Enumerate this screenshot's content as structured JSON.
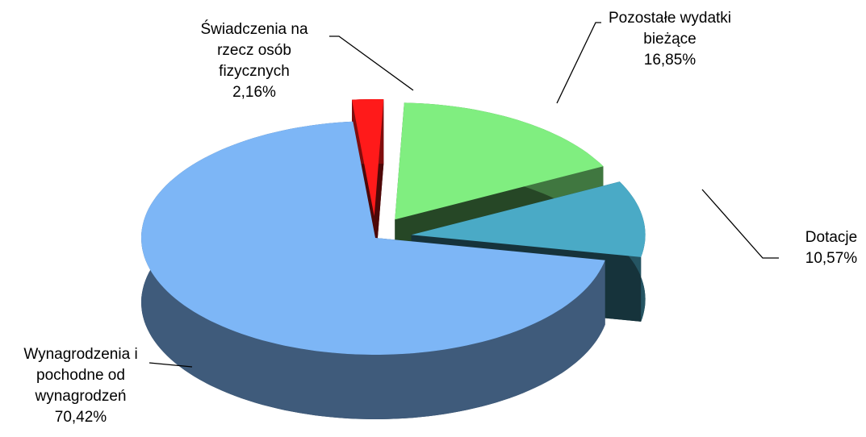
{
  "chart_data": {
    "type": "pie",
    "categories": [
      "Wynagrodzenia i pochodne od wynagrodzeń",
      "Świadczenia na rzecz osób fizycznych",
      "Pozostałe wydatki bieżące",
      "Dotacje"
    ],
    "values": [
      70.42,
      2.16,
      16.85,
      10.57
    ],
    "value_labels": [
      "70,42%",
      "2,16%",
      "16,85%",
      "10,57%"
    ],
    "colors": [
      "#7db6f6",
      "#ff1a1a",
      "#80ee80",
      "#4aaac6"
    ]
  }
}
